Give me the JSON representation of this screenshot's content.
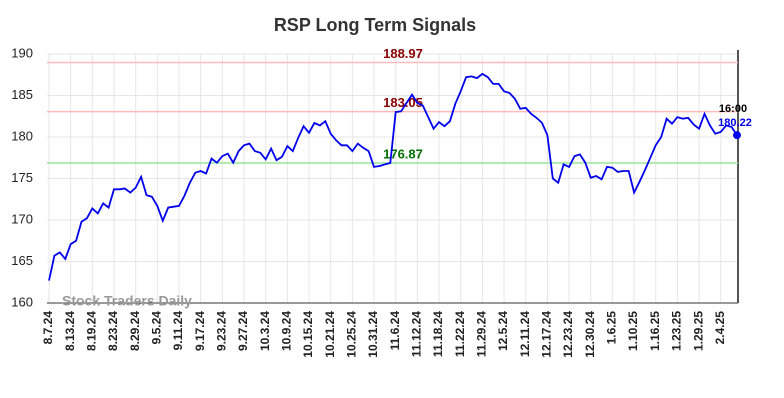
{
  "chart_data": {
    "type": "line",
    "title": "RSP Long Term Signals",
    "watermark": "Stock Traders Daily",
    "categories": [
      "8.7.24",
      null,
      null,
      null,
      "8.13.24",
      null,
      null,
      null,
      "8.19.24",
      null,
      null,
      null,
      "8.23.24",
      null,
      null,
      null,
      "8.29.24",
      null,
      null,
      null,
      "9.5.24",
      null,
      null,
      null,
      "9.11.24",
      null,
      null,
      null,
      "9.17.24",
      null,
      null,
      null,
      "9.23.24",
      null,
      null,
      null,
      "9.27.24",
      null,
      null,
      null,
      "10.3.24",
      null,
      null,
      null,
      "10.9.24",
      null,
      null,
      null,
      "10.15.24",
      null,
      null,
      null,
      "10.21.24",
      null,
      null,
      null,
      "10.25.24",
      null,
      null,
      null,
      "10.31.24",
      null,
      null,
      null,
      "11.6.24",
      null,
      null,
      null,
      "11.12.24",
      null,
      null,
      null,
      "11.18.24",
      null,
      null,
      null,
      "11.22.24",
      null,
      null,
      null,
      "11.29.24",
      null,
      null,
      null,
      "12.5.24",
      null,
      null,
      null,
      "12.11.24",
      null,
      null,
      null,
      "12.17.24",
      null,
      null,
      null,
      "12.23.24",
      null,
      null,
      null,
      "12.30.24",
      null,
      null,
      null,
      "1.6.25",
      null,
      null,
      null,
      "1.10.25",
      null,
      null,
      null,
      "1.16.25",
      null,
      null,
      null,
      "1.23.25",
      null,
      null,
      null,
      "1.29.25",
      null,
      null,
      null,
      "2.4.25",
      null,
      null,
      null
    ],
    "series": [
      {
        "color": "#0000ee",
        "values": [
          162.7,
          165.7,
          166.1,
          165.3,
          167.1,
          167.5,
          169.8,
          170.2,
          171.4,
          170.8,
          172.0,
          171.5,
          173.7,
          173.7,
          173.8,
          173.3,
          173.9,
          175.2,
          173.0,
          172.8,
          171.7,
          169.9,
          171.5,
          171.6,
          171.7,
          172.9,
          174.5,
          175.7,
          175.9,
          175.6,
          177.4,
          176.9,
          177.7,
          178.0,
          176.9,
          178.3,
          179.0,
          179.2,
          178.3,
          178.1,
          177.3,
          178.6,
          177.2,
          177.6,
          178.9,
          178.3,
          179.9,
          181.3,
          180.5,
          181.7,
          181.4,
          181.9,
          180.4,
          179.6,
          179.0,
          179.0,
          178.3,
          179.2,
          178.7,
          178.3,
          176.4,
          176.5,
          176.7,
          176.87,
          183.0,
          183.1,
          184.1,
          185.1,
          184.1,
          183.8,
          182.4,
          181.0,
          181.8,
          181.3,
          181.9,
          184.0,
          185.5,
          187.2,
          187.3,
          187.1,
          187.6,
          187.2,
          186.4,
          186.4,
          185.5,
          185.3,
          184.6,
          183.4,
          183.5,
          182.8,
          182.3,
          181.7,
          180.2,
          175.0,
          174.5,
          176.7,
          176.4,
          177.7,
          177.9,
          176.9,
          175.1,
          175.3,
          174.9,
          176.4,
          176.3,
          175.8,
          175.9,
          175.9,
          173.3,
          174.6,
          176.0,
          177.5,
          179.0,
          180.0,
          182.2,
          181.6,
          182.4,
          182.2,
          182.3,
          181.5,
          181.0,
          182.8,
          181.4,
          180.4,
          180.6,
          181.4,
          181.2,
          180.22
        ]
      }
    ],
    "hlines": [
      {
        "value": 188.97,
        "color": "#ffbbbb",
        "label_color": "#8b0000"
      },
      {
        "value": 183.05,
        "color": "#ffbbbb",
        "label_color": "#8b0000"
      },
      {
        "value": 176.87,
        "color": "#99e699",
        "label_color": "#007000"
      }
    ],
    "last_time": "16:00",
    "ylim": [
      160,
      190
    ],
    "yticks": [
      160,
      165,
      170,
      175,
      180,
      185,
      190
    ],
    "grid": true
  }
}
